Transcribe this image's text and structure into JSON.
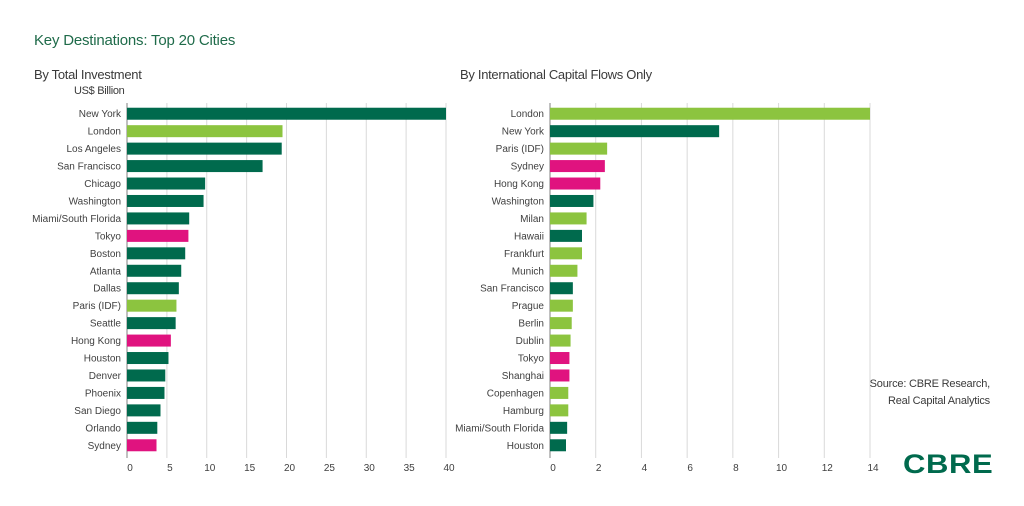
{
  "page": {
    "title": "Key Destinations: Top 20 Cities",
    "source_lines": [
      "Source: CBRE Research,",
      "Real Capital Analytics"
    ],
    "logo_text": "CBRE"
  },
  "colors": {
    "us": "#006a4d",
    "europe": "#8cc43f",
    "asia": "#e0137f",
    "title": "#1f6b4a",
    "text": "#404040",
    "grid": "#d9d9d9"
  },
  "chart_data": [
    {
      "type": "bar",
      "orientation": "horizontal",
      "title": "By Total Investment",
      "unit_label": "US$ Billion",
      "categories": [
        "New York",
        "London",
        "Los Angeles",
        "San Francisco",
        "Chicago",
        "Washington",
        "Miami/South Florida",
        "Tokyo",
        "Boston",
        "Atlanta",
        "Dallas",
        "Paris (IDF)",
        "Seattle",
        "Hong Kong",
        "Houston",
        "Denver",
        "Phoenix",
        "San Diego",
        "Orlando",
        "Sydney"
      ],
      "values": [
        40.0,
        19.5,
        19.4,
        17.0,
        9.8,
        9.6,
        7.8,
        7.7,
        7.3,
        6.8,
        6.5,
        6.2,
        6.1,
        5.5,
        5.2,
        4.8,
        4.7,
        4.2,
        3.8,
        3.7
      ],
      "bar_colors": [
        "us",
        "europe",
        "us",
        "us",
        "us",
        "us",
        "us",
        "asia",
        "us",
        "us",
        "us",
        "europe",
        "us",
        "asia",
        "us",
        "us",
        "us",
        "us",
        "us",
        "asia"
      ],
      "xlim": [
        0,
        40
      ],
      "xticks": [
        0,
        5,
        10,
        15,
        20,
        25,
        30,
        35,
        40
      ],
      "grid": true
    },
    {
      "type": "bar",
      "orientation": "horizontal",
      "title": "By International Capital Flows Only",
      "unit_label": "",
      "categories": [
        "London",
        "New York",
        "Paris (IDF)",
        "Sydney",
        "Hong Kong",
        "Washington",
        "Milan",
        "Hawaii",
        "Frankfurt",
        "Munich",
        "San Francisco",
        "Prague",
        "Berlin",
        "Dublin",
        "Tokyo",
        "Shanghai",
        "Copenhagen",
        "Hamburg",
        "Miami/South Florida",
        "Houston"
      ],
      "values": [
        14.0,
        7.4,
        2.5,
        2.4,
        2.2,
        1.9,
        1.6,
        1.4,
        1.4,
        1.2,
        1.0,
        1.0,
        0.95,
        0.9,
        0.85,
        0.85,
        0.8,
        0.8,
        0.75,
        0.7
      ],
      "bar_colors": [
        "europe",
        "us",
        "europe",
        "asia",
        "asia",
        "us",
        "europe",
        "us",
        "europe",
        "europe",
        "us",
        "europe",
        "europe",
        "europe",
        "asia",
        "asia",
        "europe",
        "europe",
        "us",
        "us"
      ],
      "xlim": [
        0,
        14
      ],
      "xticks": [
        0,
        2,
        4,
        6,
        8,
        10,
        12,
        14
      ],
      "grid": true
    }
  ]
}
